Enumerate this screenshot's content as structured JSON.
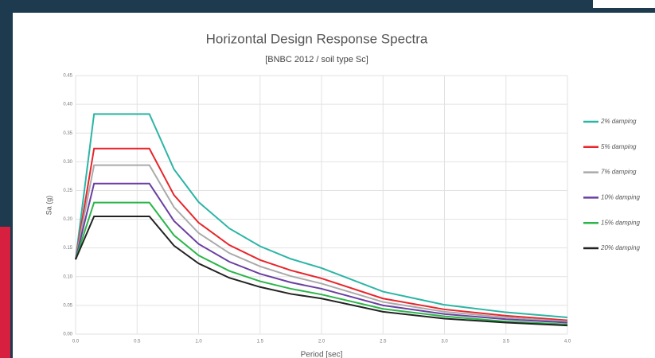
{
  "chart_data": {
    "type": "line",
    "title": "Horizontal Design Response Spectra",
    "subtitle": "[BNBC 2012 / soil type Sc]",
    "x_label": "Period [sec]",
    "y_label": "Sa (g)",
    "x": [
      0,
      0.15,
      0.6,
      0.8,
      1.0,
      1.25,
      1.5,
      1.75,
      2.0,
      2.5,
      3.0,
      3.5,
      4.0
    ],
    "series": [
      {
        "name": "2% damping",
        "color": "#2bb5a5",
        "values": [
          0.13,
          0.383,
          0.383,
          0.287,
          0.23,
          0.184,
          0.153,
          0.131,
          0.115,
          0.074,
          0.051,
          0.038,
          0.029
        ]
      },
      {
        "name": "5% damping",
        "color": "#e8252b",
        "values": [
          0.13,
          0.323,
          0.323,
          0.242,
          0.194,
          0.155,
          0.129,
          0.111,
          0.097,
          0.062,
          0.043,
          0.032,
          0.024
        ]
      },
      {
        "name": "7% damping",
        "color": "#aaaaaa",
        "values": [
          0.13,
          0.294,
          0.294,
          0.221,
          0.176,
          0.141,
          0.118,
          0.101,
          0.088,
          0.056,
          0.039,
          0.029,
          0.022
        ]
      },
      {
        "name": "10% damping",
        "color": "#6a3fa0",
        "values": [
          0.13,
          0.262,
          0.262,
          0.197,
          0.157,
          0.126,
          0.105,
          0.09,
          0.079,
          0.05,
          0.035,
          0.026,
          0.02
        ]
      },
      {
        "name": "15% damping",
        "color": "#2bb54a",
        "values": [
          0.13,
          0.229,
          0.229,
          0.172,
          0.137,
          0.11,
          0.092,
          0.079,
          0.069,
          0.044,
          0.031,
          0.022,
          0.017
        ]
      },
      {
        "name": "20% damping",
        "color": "#222222",
        "values": [
          0.13,
          0.205,
          0.205,
          0.154,
          0.123,
          0.098,
          0.082,
          0.07,
          0.062,
          0.039,
          0.027,
          0.02,
          0.015
        ]
      }
    ],
    "xlim": [
      0,
      4.0
    ],
    "ylim": [
      0,
      0.45
    ],
    "xticks": [
      {
        "value": 0,
        "label": "0.0"
      },
      0.5,
      {
        "value": 1,
        "label": "1.0"
      },
      1.5,
      {
        "value": 2,
        "label": "2.0"
      },
      2.5,
      {
        "value": 3,
        "label": "3.0"
      },
      3.5,
      {
        "value": 4,
        "label": "4.0"
      }
    ],
    "yticks": [
      {
        "value": 0,
        "label": "0.00"
      },
      0.05,
      {
        "value": 0.1,
        "label": "0.10"
      },
      0.15,
      {
        "value": 0.2,
        "label": "0.20"
      },
      0.25,
      {
        "value": 0.3,
        "label": "0.30"
      },
      0.35,
      {
        "value": 0.4,
        "label": "0.40"
      },
      0.45
    ],
    "grid": true,
    "legend": "right"
  }
}
